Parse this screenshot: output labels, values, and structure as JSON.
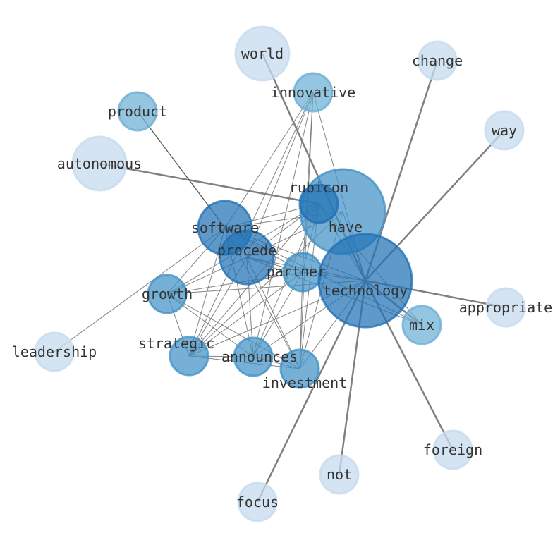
{
  "graph": {
    "colors": {
      "light": "#c6dbef",
      "mid_light": "#6baed6",
      "mid": "#4292c6",
      "dark": "#2171b5",
      "edge": "#555555",
      "label": "#333333"
    },
    "nodes": [
      {
        "id": "world",
        "label": "world",
        "shade": "light",
        "size": "large"
      },
      {
        "id": "change",
        "label": "change",
        "shade": "light",
        "size": "small"
      },
      {
        "id": "innovative",
        "label": "innovative",
        "shade": "mid_light",
        "size": "small"
      },
      {
        "id": "product",
        "label": "product",
        "shade": "mid_light",
        "size": "small"
      },
      {
        "id": "way",
        "label": "way",
        "shade": "light",
        "size": "small"
      },
      {
        "id": "autonomous",
        "label": "autonomous",
        "shade": "light",
        "size": "large"
      },
      {
        "id": "have",
        "label": "have",
        "shade": "mid",
        "size": "xlarge"
      },
      {
        "id": "rubicon",
        "label": "rubicon",
        "shade": "dark",
        "size": "small"
      },
      {
        "id": "software",
        "label": "software",
        "shade": "dark",
        "size": "large"
      },
      {
        "id": "procede",
        "label": "procede",
        "shade": "dark",
        "size": "large"
      },
      {
        "id": "partner",
        "label": "partner",
        "shade": "mid",
        "size": "small"
      },
      {
        "id": "technology",
        "label": "technology",
        "shade": "dark",
        "size": "xxlarge"
      },
      {
        "id": "growth",
        "label": "growth",
        "shade": "mid",
        "size": "small"
      },
      {
        "id": "appropriate",
        "label": "appropriate",
        "shade": "light",
        "size": "small"
      },
      {
        "id": "mix",
        "label": "mix",
        "shade": "mid_light",
        "size": "small"
      },
      {
        "id": "leadership",
        "label": "leadership",
        "shade": "light",
        "size": "small"
      },
      {
        "id": "strategic",
        "label": "strategic",
        "shade": "mid",
        "size": "small"
      },
      {
        "id": "announces",
        "label": "announces",
        "shade": "mid",
        "size": "small"
      },
      {
        "id": "investment",
        "label": "investment",
        "shade": "mid",
        "size": "small"
      },
      {
        "id": "foreign",
        "label": "foreign",
        "shade": "light",
        "size": "small"
      },
      {
        "id": "not",
        "label": "not",
        "shade": "light",
        "size": "small"
      },
      {
        "id": "focus",
        "label": "focus",
        "shade": "light",
        "size": "small"
      }
    ],
    "edges": [
      [
        "world",
        "technology",
        2.5
      ],
      [
        "change",
        "technology",
        2.5
      ],
      [
        "way",
        "technology",
        2.5
      ],
      [
        "appropriate",
        "technology",
        2.5
      ],
      [
        "foreign",
        "technology",
        2.5
      ],
      [
        "not",
        "technology",
        2.5
      ],
      [
        "focus",
        "technology",
        2.5
      ],
      [
        "mix",
        "technology",
        2.5
      ],
      [
        "autonomous",
        "rubicon",
        2.5
      ],
      [
        "product",
        "software",
        1.3
      ],
      [
        "leadership",
        "software",
        1
      ],
      [
        "innovative",
        "software",
        1
      ],
      [
        "innovative",
        "procede",
        1
      ],
      [
        "innovative",
        "strategic",
        1
      ],
      [
        "innovative",
        "announces",
        1
      ],
      [
        "innovative",
        "investment",
        1
      ],
      [
        "innovative",
        "technology",
        1
      ],
      [
        "innovative",
        "partner",
        1
      ],
      [
        "rubicon",
        "software",
        1
      ],
      [
        "rubicon",
        "procede",
        1
      ],
      [
        "rubicon",
        "growth",
        1
      ],
      [
        "rubicon",
        "strategic",
        1
      ],
      [
        "rubicon",
        "announces",
        1
      ],
      [
        "rubicon",
        "investment",
        1
      ],
      [
        "rubicon",
        "partner",
        1
      ],
      [
        "rubicon",
        "technology",
        1
      ],
      [
        "rubicon",
        "mix",
        1
      ],
      [
        "have",
        "software",
        1
      ],
      [
        "have",
        "procede",
        1
      ],
      [
        "have",
        "strategic",
        1
      ],
      [
        "have",
        "investment",
        1
      ],
      [
        "have",
        "technology",
        1
      ],
      [
        "software",
        "technology",
        1
      ],
      [
        "software",
        "mix",
        1
      ],
      [
        "software",
        "growth",
        1
      ],
      [
        "software",
        "strategic",
        1
      ],
      [
        "software",
        "announces",
        1
      ],
      [
        "software",
        "investment",
        1
      ],
      [
        "software",
        "partner",
        1
      ],
      [
        "procede",
        "technology",
        1
      ],
      [
        "procede",
        "mix",
        1
      ],
      [
        "procede",
        "growth",
        1
      ],
      [
        "procede",
        "strategic",
        1
      ],
      [
        "procede",
        "announces",
        1
      ],
      [
        "procede",
        "investment",
        1
      ],
      [
        "procede",
        "partner",
        1
      ],
      [
        "partner",
        "technology",
        1
      ],
      [
        "partner",
        "growth",
        1
      ],
      [
        "partner",
        "strategic",
        1
      ],
      [
        "partner",
        "investment",
        1
      ],
      [
        "partner",
        "announces",
        1
      ],
      [
        "growth",
        "technology",
        1
      ],
      [
        "growth",
        "strategic",
        1
      ],
      [
        "growth",
        "announces",
        1
      ],
      [
        "growth",
        "investment",
        1
      ],
      [
        "strategic",
        "technology",
        1
      ],
      [
        "strategic",
        "announces",
        1
      ],
      [
        "strategic",
        "investment",
        1
      ],
      [
        "announces",
        "technology",
        1
      ],
      [
        "announces",
        "investment",
        1
      ],
      [
        "investment",
        "technology",
        1
      ]
    ]
  }
}
